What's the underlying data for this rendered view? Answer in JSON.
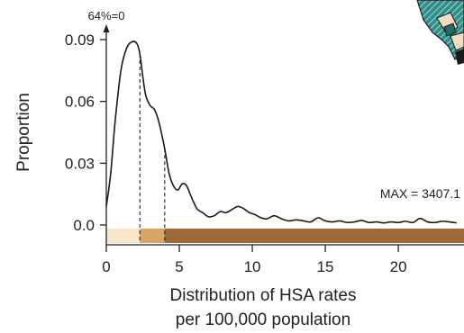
{
  "chart_data": {
    "type": "line",
    "title": "",
    "xlabel_lines": [
      "Distribution of HSA rates",
      "per 100,000 population"
    ],
    "ylabel": "Proportion",
    "xlim": [
      0,
      24.5
    ],
    "ylim": [
      0,
      0.09
    ],
    "x_ticks": [
      0,
      5,
      10,
      15,
      20
    ],
    "y_ticks": [
      0.0,
      0.03,
      0.06,
      0.09
    ],
    "y_tick_labels": [
      "0.0",
      "0.03",
      "0.06",
      "0.09"
    ],
    "top_annotation": "64%=0",
    "max_annotation": "MAX =  3407.1",
    "dashed_lines_x": [
      2.3,
      4.0
    ],
    "line_color": "#1a1a1a",
    "legend_bands": [
      {
        "from": 0,
        "to": 2.3,
        "color": "#f8e6c8"
      },
      {
        "from": 2.3,
        "to": 4.0,
        "color": "#d8a468"
      },
      {
        "from": 4.0,
        "to": 24.5,
        "color": "#a0693a"
      }
    ],
    "map_colors": [
      "#2f8f8a",
      "#f3dcc0",
      "#1a1a1a"
    ],
    "series": [
      {
        "x": [
          0.0,
          0.3,
          0.6,
          1.0,
          1.4,
          1.8,
          2.1,
          2.3,
          2.5,
          2.7,
          3.0,
          3.3,
          3.6,
          4.0,
          4.3,
          4.6,
          4.9,
          5.2,
          5.5,
          5.8,
          6.2,
          6.6,
          7.0,
          7.4,
          7.8,
          8.2,
          8.6,
          9.0,
          9.4,
          9.8,
          10.2,
          10.6,
          11.0,
          11.5,
          12.0,
          12.5,
          13.0,
          13.5,
          14.0,
          14.5,
          15.0,
          15.5,
          16.0,
          16.5,
          17.0,
          17.5,
          18.0,
          18.5,
          19.0,
          19.5,
          20.0,
          20.5,
          21.0,
          21.5,
          22.0,
          22.5,
          23.0,
          23.5,
          24.0
        ],
        "y": [
          0.009,
          0.025,
          0.05,
          0.075,
          0.086,
          0.089,
          0.088,
          0.083,
          0.072,
          0.063,
          0.058,
          0.056,
          0.05,
          0.037,
          0.025,
          0.019,
          0.017,
          0.02,
          0.019,
          0.014,
          0.008,
          0.006,
          0.004,
          0.0045,
          0.0065,
          0.006,
          0.0075,
          0.009,
          0.008,
          0.006,
          0.005,
          0.0035,
          0.003,
          0.0045,
          0.003,
          0.002,
          0.0025,
          0.002,
          0.0015,
          0.0035,
          0.002,
          0.0015,
          0.002,
          0.0012,
          0.0015,
          0.0022,
          0.0012,
          0.0015,
          0.001,
          0.0015,
          0.0012,
          0.0018,
          0.0012,
          0.0032,
          0.0015,
          0.0012,
          0.0018,
          0.0015,
          0.001
        ]
      }
    ]
  }
}
